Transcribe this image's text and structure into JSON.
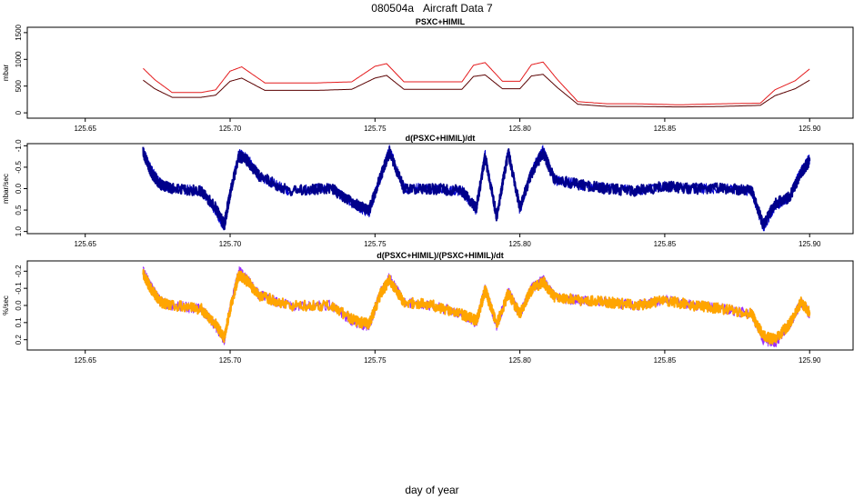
{
  "figure": {
    "title_id": "080504a",
    "title_text": "Aircraft Data 7",
    "xlabel": "day of year"
  },
  "chart_data": [
    {
      "type": "line",
      "title": "PSXC+HIMIL",
      "ylabel": "mbar",
      "xlim": [
        125.63,
        125.915
      ],
      "ylim": [
        -100,
        1600
      ],
      "y_reversed": false,
      "x_ticks": [
        125.65,
        125.7,
        125.75,
        125.8,
        125.85,
        125.9
      ],
      "x_tick_labels": [
        "125.65",
        "125.70",
        "125.75",
        "125.80",
        "125.85",
        "125.90"
      ],
      "y_ticks": [
        0,
        500,
        1000,
        1500
      ],
      "y_tick_labels": [
        "0",
        "500",
        "1000",
        "1500"
      ],
      "series": [
        {
          "color": "#e41a1c",
          "x": [
            125.67,
            125.674,
            125.68,
            125.69,
            125.695,
            125.7,
            125.704,
            125.712,
            125.73,
            125.742,
            125.75,
            125.754,
            125.76,
            125.78,
            125.784,
            125.788,
            125.794,
            125.8,
            125.804,
            125.808,
            125.813,
            125.82,
            125.83,
            125.84,
            125.855,
            125.87,
            125.883,
            125.888,
            125.895,
            125.9
          ],
          "y": [
            830,
            620,
            380,
            380,
            430,
            780,
            860,
            560,
            560,
            580,
            870,
            920,
            580,
            580,
            890,
            940,
            590,
            590,
            900,
            950,
            620,
            210,
            170,
            170,
            150,
            170,
            180,
            430,
            600,
            820
          ]
        },
        {
          "color": "#5a0000",
          "x": [
            125.67,
            125.674,
            125.68,
            125.69,
            125.695,
            125.7,
            125.704,
            125.712,
            125.73,
            125.742,
            125.75,
            125.754,
            125.76,
            125.78,
            125.784,
            125.788,
            125.794,
            125.8,
            125.804,
            125.808,
            125.813,
            125.82,
            125.83,
            125.84,
            125.855,
            125.87,
            125.883,
            125.888,
            125.895,
            125.9
          ],
          "y": [
            610,
            450,
            290,
            290,
            330,
            590,
            650,
            420,
            420,
            440,
            650,
            700,
            440,
            440,
            680,
            710,
            450,
            450,
            690,
            720,
            470,
            160,
            120,
            120,
            110,
            120,
            140,
            320,
            450,
            610
          ]
        }
      ]
    },
    {
      "type": "line",
      "title": "d(PSXC+HIMIL)/dt",
      "ylabel": "mbar/sec",
      "xlim": [
        125.63,
        125.915
      ],
      "ylim": [
        -1.05,
        1.05
      ],
      "y_reversed": true,
      "x_ticks": [
        125.65,
        125.7,
        125.75,
        125.8,
        125.85,
        125.9
      ],
      "x_tick_labels": [
        "125.65",
        "125.70",
        "125.75",
        "125.80",
        "125.85",
        "125.90"
      ],
      "y_ticks": [
        -1.0,
        -0.5,
        0.0,
        0.5,
        1.0
      ],
      "y_tick_labels": [
        "-1.0",
        "-0.5",
        "0.0",
        "0.5",
        "1.0"
      ],
      "series": [
        {
          "color": "#0000cd",
          "x": [
            125.67,
            125.673,
            125.676,
            125.68,
            125.69,
            125.695,
            125.698,
            125.7,
            125.703,
            125.706,
            125.71,
            125.72,
            125.735,
            125.743,
            125.748,
            125.752,
            125.755,
            125.76,
            125.77,
            125.78,
            125.785,
            125.788,
            125.792,
            125.796,
            125.8,
            125.804,
            125.808,
            125.812,
            125.82,
            125.83,
            125.84,
            125.85,
            125.86,
            125.87,
            125.88,
            125.884,
            125.888,
            125.893,
            125.897,
            125.9
          ],
          "y": [
            -0.9,
            -0.4,
            -0.1,
            0.0,
            0.05,
            0.5,
            0.9,
            0.1,
            -0.8,
            -0.7,
            -0.3,
            0.05,
            0.0,
            0.4,
            0.55,
            -0.3,
            -0.9,
            0.0,
            0.0,
            0.05,
            0.5,
            -0.8,
            0.7,
            -0.9,
            0.5,
            -0.4,
            -0.9,
            -0.2,
            -0.1,
            0.0,
            0.05,
            -0.05,
            0.0,
            0.0,
            0.05,
            0.9,
            0.4,
            0.2,
            -0.4,
            -0.7
          ]
        },
        {
          "color": "#00008b",
          "x": [
            125.67,
            125.673,
            125.676,
            125.68,
            125.69,
            125.695,
            125.698,
            125.7,
            125.703,
            125.706,
            125.71,
            125.72,
            125.735,
            125.743,
            125.748,
            125.752,
            125.755,
            125.76,
            125.77,
            125.78,
            125.785,
            125.788,
            125.792,
            125.796,
            125.8,
            125.804,
            125.808,
            125.812,
            125.82,
            125.83,
            125.84,
            125.85,
            125.86,
            125.87,
            125.88,
            125.884,
            125.888,
            125.893,
            125.897,
            125.9
          ],
          "y": [
            -0.85,
            -0.35,
            -0.1,
            0.0,
            0.05,
            0.45,
            0.85,
            0.1,
            -0.75,
            -0.65,
            -0.3,
            0.05,
            0.0,
            0.35,
            0.5,
            -0.3,
            -0.85,
            0.0,
            0.0,
            0.05,
            0.45,
            -0.75,
            0.65,
            -0.85,
            0.45,
            -0.35,
            -0.85,
            -0.2,
            -0.1,
            0.0,
            0.05,
            -0.05,
            0.0,
            0.0,
            0.05,
            0.85,
            0.35,
            0.2,
            -0.35,
            -0.65
          ]
        }
      ]
    },
    {
      "type": "line",
      "title": "d(PSXC+HIMIL)/(PSXC+HIMIL)/dt",
      "ylabel": "%/sec",
      "xlim": [
        125.63,
        125.915
      ],
      "ylim": [
        -0.26,
        0.26
      ],
      "y_reversed": true,
      "x_ticks": [
        125.65,
        125.7,
        125.75,
        125.8,
        125.85,
        125.9
      ],
      "x_tick_labels": [
        "125.65",
        "125.70",
        "125.75",
        "125.80",
        "125.85",
        "125.90"
      ],
      "y_ticks": [
        -0.2,
        -0.1,
        0.0,
        0.1,
        0.2
      ],
      "y_tick_labels": [
        "-0.2",
        "-0.1",
        "0.0",
        "0.1",
        "0.2"
      ],
      "series": [
        {
          "color": "#9b30ff",
          "x": [
            125.67,
            125.673,
            125.676,
            125.68,
            125.69,
            125.695,
            125.698,
            125.7,
            125.703,
            125.706,
            125.71,
            125.72,
            125.735,
            125.743,
            125.748,
            125.752,
            125.755,
            125.76,
            125.77,
            125.78,
            125.785,
            125.788,
            125.792,
            125.796,
            125.8,
            125.804,
            125.808,
            125.812,
            125.82,
            125.83,
            125.84,
            125.85,
            125.86,
            125.87,
            125.88,
            125.884,
            125.888,
            125.893,
            125.897,
            125.9
          ],
          "y": [
            -0.2,
            -0.1,
            -0.02,
            0.0,
            0.02,
            0.12,
            0.2,
            0.02,
            -0.2,
            -0.15,
            -0.06,
            0.0,
            0.0,
            0.1,
            0.12,
            -0.08,
            -0.16,
            -0.02,
            0.0,
            0.05,
            0.1,
            -0.1,
            0.12,
            -0.08,
            0.05,
            -0.1,
            -0.15,
            -0.05,
            -0.03,
            -0.02,
            0.0,
            -0.03,
            0.0,
            0.02,
            0.05,
            0.2,
            0.22,
            0.12,
            -0.02,
            0.05
          ]
        },
        {
          "color": "#ffa500",
          "x": [
            125.67,
            125.673,
            125.676,
            125.68,
            125.69,
            125.695,
            125.698,
            125.7,
            125.703,
            125.706,
            125.71,
            125.72,
            125.735,
            125.743,
            125.748,
            125.752,
            125.755,
            125.76,
            125.77,
            125.78,
            125.785,
            125.788,
            125.792,
            125.796,
            125.8,
            125.804,
            125.808,
            125.812,
            125.82,
            125.83,
            125.84,
            125.85,
            125.86,
            125.87,
            125.88,
            125.884,
            125.888,
            125.893,
            125.897,
            125.9
          ],
          "y": [
            -0.18,
            -0.09,
            -0.02,
            0.0,
            0.02,
            0.11,
            0.19,
            0.02,
            -0.18,
            -0.14,
            -0.06,
            0.0,
            0.0,
            0.09,
            0.11,
            -0.07,
            -0.15,
            -0.02,
            0.0,
            0.05,
            0.09,
            -0.09,
            0.11,
            -0.07,
            0.05,
            -0.09,
            -0.14,
            -0.05,
            -0.03,
            -0.02,
            0.0,
            -0.03,
            0.0,
            0.02,
            0.05,
            0.18,
            0.2,
            0.11,
            -0.02,
            0.04
          ]
        }
      ]
    }
  ]
}
